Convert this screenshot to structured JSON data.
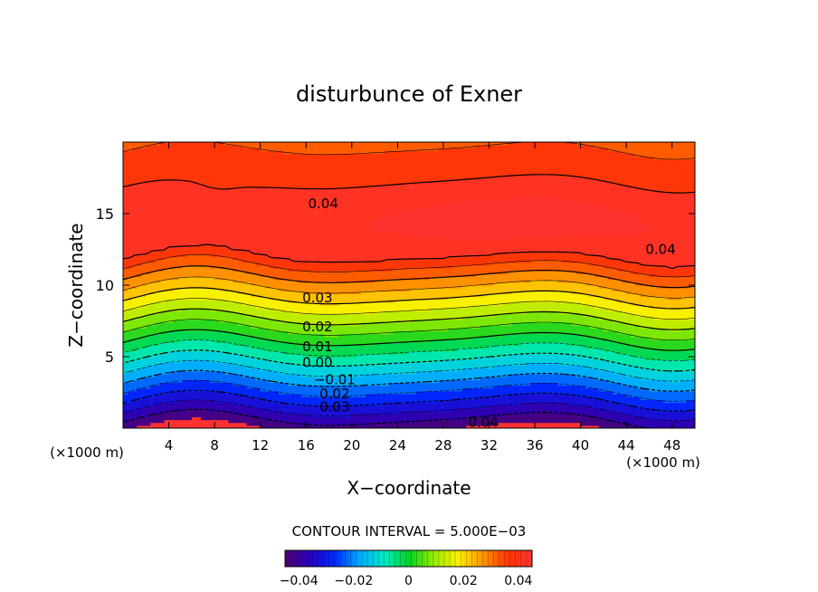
{
  "chart_data": {
    "type": "contour",
    "title": "disturbunce of Exner",
    "xlabel": "X−coordinate",
    "ylabel": "Z−coordinate",
    "x_unit": "(×1000 m)",
    "x_unit_right": "(×1000 m)",
    "xlim": [
      0,
      50
    ],
    "ylim": [
      0,
      20
    ],
    "x_ticks": [
      4,
      8,
      12,
      16,
      20,
      24,
      28,
      32,
      36,
      40,
      44,
      48
    ],
    "y_ticks": [
      5,
      10,
      15
    ],
    "contour_interval_text": "CONTOUR INTERVAL = 5.000E−03",
    "contour_interval": 0.005,
    "value_range": [
      -0.045,
      0.045
    ],
    "colorbar_ticks": [
      "−0.04",
      "−0.02",
      "0",
      "0.02",
      "0.04"
    ],
    "colorbar_tick_values": [
      -0.04,
      -0.02,
      0,
      0.02,
      0.04
    ],
    "contour_labels": [
      {
        "text": "0.04",
        "x": 17.5,
        "z": 15.7
      },
      {
        "text": "0.04",
        "x": 47.0,
        "z": 12.5
      },
      {
        "text": "0.03",
        "x": 17.0,
        "z": 9.1
      },
      {
        "text": "0.02",
        "x": 17.0,
        "z": 7.1
      },
      {
        "text": "0.01",
        "x": 17.0,
        "z": 5.7
      },
      {
        "text": "0.00",
        "x": 17.0,
        "z": 4.6
      },
      {
        "text": "−0.01",
        "x": 18.5,
        "z": 3.4
      },
      {
        "text": "0.02",
        "x": 18.5,
        "z": 2.4
      },
      {
        "text": "0.03",
        "x": 18.5,
        "z": 1.5
      },
      {
        "text": "0.04",
        "x": 31.5,
        "z": 0.4
      }
    ],
    "grid": false,
    "legend": "colorbar bottom-center"
  }
}
